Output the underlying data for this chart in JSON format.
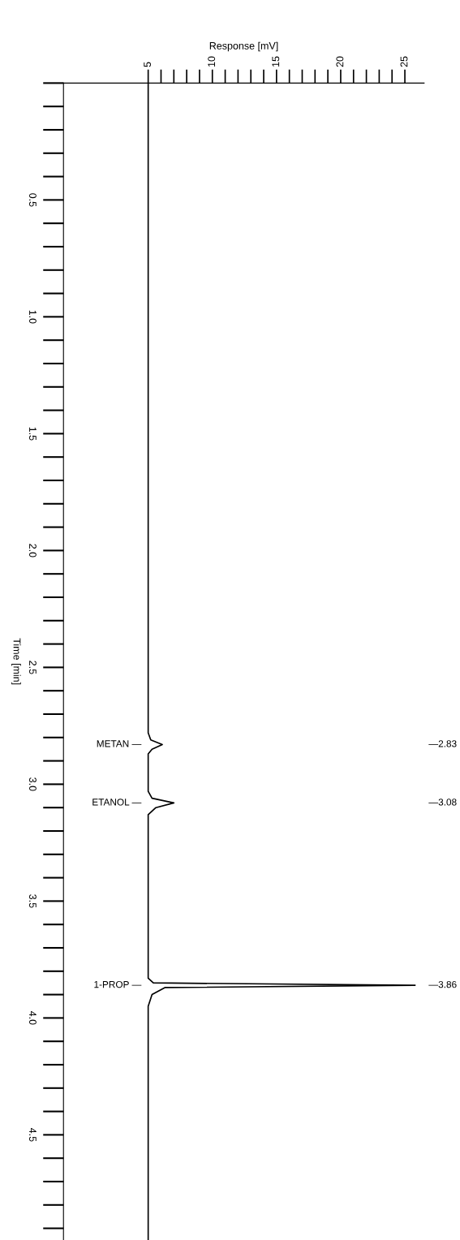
{
  "chart_data": {
    "type": "line",
    "orientation": "horizontal",
    "xlabel": "Response [mV]",
    "ylabel": "Time [min]",
    "x": [
      0,
      2.78,
      2.81,
      2.83,
      2.85,
      2.87,
      3.03,
      3.06,
      3.08,
      3.1,
      3.13,
      3.83,
      3.85,
      3.86,
      3.87,
      3.9,
      3.95,
      4.95
    ],
    "series": [
      {
        "color": "#000000",
        "values": [
          5,
          5,
          5.2,
          6.1,
          5.3,
          5,
          5,
          5.3,
          7.0,
          5.6,
          5,
          5,
          5.4,
          25.8,
          6.3,
          5.3,
          5,
          5
        ]
      }
    ],
    "xlim": [
      -1.6,
      26.5
    ],
    "xticks": [
      5,
      10,
      15,
      20,
      25
    ],
    "ylim": [
      4.95,
      0
    ],
    "yticks": [
      0.5,
      {
        "value": 1.0,
        "label": "1.0"
      },
      1.5,
      {
        "value": 2.0,
        "label": "2.0"
      },
      2.5,
      {
        "value": 3.0,
        "label": "3.0"
      },
      3.5,
      {
        "value": 4.0,
        "label": "4.0"
      },
      4.5
    ],
    "annotations": [
      "METAN —",
      "ETANOL —",
      "1-PROP —",
      "—2.83",
      "—3.08",
      "—3.86"
    ],
    "grid": false,
    "marker": "none",
    "line_style": "solid"
  }
}
